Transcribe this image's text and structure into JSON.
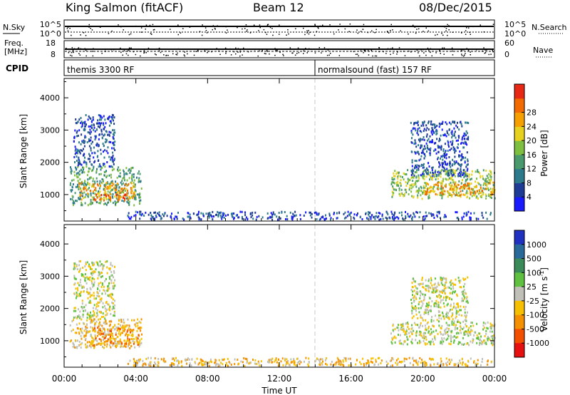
{
  "header": {
    "station": "King Salmon (fitACF)",
    "beam": "Beam 12",
    "date": "08/Dec/2015"
  },
  "noise_panel": {
    "left_label": "N.Sky",
    "right_label": "N.Search",
    "left_ticks": [
      "10^5",
      "10^0"
    ],
    "right_ticks": [
      "10^5",
      "10^0"
    ]
  },
  "freq_panel": {
    "left_label_1": "Freq.",
    "left_label_2": "[MHz]",
    "right_label": "Nave",
    "left_ticks": [
      "18",
      "8"
    ],
    "right_ticks": [
      "60",
      "0"
    ]
  },
  "cpid_panel": {
    "label": "CPID",
    "segments": [
      {
        "name": "themis 3300 RF",
        "start_hour": 0,
        "end_hour": 14
      },
      {
        "name": "normalsound (fast) 157 RF",
        "start_hour": 14,
        "end_hour": 24
      }
    ]
  },
  "chart_data": [
    {
      "type": "heatmap",
      "title": "",
      "xlabel": "Time UT",
      "ylabel": "Slant Range [km]",
      "xlim": [
        0,
        24
      ],
      "ylim": [
        180,
        4600
      ],
      "x_ticks": [
        "00:00",
        "04:00",
        "08:00",
        "12:00",
        "16:00",
        "20:00",
        "00:00"
      ],
      "y_ticks": [
        1000,
        2000,
        3000,
        4000
      ],
      "colorbar": {
        "label": "Power [dB]",
        "ticks": [
          "4",
          "8",
          "12",
          "16",
          "20",
          "24",
          "28"
        ],
        "colors": [
          "#1a1aff",
          "#1e3c96",
          "#2d7a8c",
          "#4a9a6e",
          "#7fbf3f",
          "#e6d21e",
          "#f5a000",
          "#f26a00",
          "#e62814"
        ]
      },
      "echo_regions": [
        {
          "x_start": 0.3,
          "x_end": 4.3,
          "r_start": 700,
          "r_end": 1900,
          "level": 3
        },
        {
          "x_start": 0.8,
          "x_end": 3.9,
          "r_start": 850,
          "r_end": 1400,
          "level": 6
        },
        {
          "x_start": 1.5,
          "x_end": 3.4,
          "r_start": 850,
          "r_end": 1050,
          "level": 8
        },
        {
          "x_start": 0.5,
          "x_end": 2.8,
          "r_start": 1900,
          "r_end": 3500,
          "level": 1
        },
        {
          "x_start": 3.5,
          "x_end": 23.8,
          "r_start": 250,
          "r_end": 500,
          "level": 1
        },
        {
          "x_start": 18.2,
          "x_end": 24.0,
          "r_start": 900,
          "r_end": 1800,
          "level": 4
        },
        {
          "x_start": 20.0,
          "x_end": 24.0,
          "r_start": 1000,
          "r_end": 1400,
          "level": 6
        },
        {
          "x_start": 19.3,
          "x_end": 22.5,
          "r_start": 1600,
          "r_end": 3300,
          "level": 1
        }
      ]
    },
    {
      "type": "heatmap",
      "title": "",
      "xlabel": "Time UT",
      "ylabel": "Slant Range [km]",
      "xlim": [
        0,
        24
      ],
      "ylim": [
        180,
        4600
      ],
      "x_ticks": [
        "00:00",
        "04:00",
        "08:00",
        "12:00",
        "16:00",
        "20:00",
        "00:00"
      ],
      "y_ticks": [
        1000,
        2000,
        3000,
        4000
      ],
      "colorbar": {
        "label": "Velocity [m s^-1]",
        "ticks": [
          "1000",
          "500",
          "100",
          "25",
          "-25",
          "-100",
          "-500",
          "-1000"
        ],
        "colors": [
          "#2030c0",
          "#2a6a9a",
          "#3a8a5a",
          "#60c040",
          "#c0c0b8",
          "#f5c000",
          "#f59000",
          "#f25000",
          "#e61010"
        ]
      },
      "echo_regions": [
        {
          "x_start": 0.3,
          "x_end": 4.3,
          "r_start": 800,
          "r_end": 1700,
          "level": 5
        },
        {
          "x_start": 1.5,
          "x_end": 4.2,
          "r_start": 850,
          "r_end": 1450,
          "level": 6
        },
        {
          "x_start": 0.5,
          "x_end": 2.8,
          "r_start": 1700,
          "r_end": 3500,
          "level": 4
        },
        {
          "x_start": 3.5,
          "x_end": 23.8,
          "r_start": 250,
          "r_end": 500,
          "level": 5
        },
        {
          "x_start": 18.2,
          "x_end": 24.0,
          "r_start": 900,
          "r_end": 1600,
          "level": 4
        },
        {
          "x_start": 19.3,
          "x_end": 22.5,
          "r_start": 1600,
          "r_end": 3000,
          "level": 4
        }
      ]
    }
  ]
}
